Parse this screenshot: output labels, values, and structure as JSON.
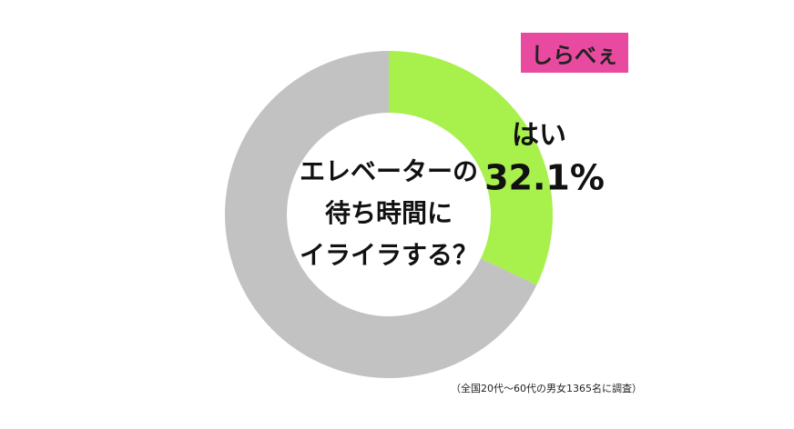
{
  "chart_data": {
    "type": "donut",
    "center_text": [
      "エレベーターの",
      "待ち時間に",
      "イライラする？"
    ],
    "categories": [
      "はい",
      null
    ],
    "values": [
      32.1,
      67.9
    ],
    "value_labels": [
      "32.1%",
      null
    ],
    "colors": [
      "#a8f04c",
      "#c2c2c2"
    ],
    "note": "（全国20代～60代の男女1365名に調査）",
    "logo": "しらべぇ"
  }
}
